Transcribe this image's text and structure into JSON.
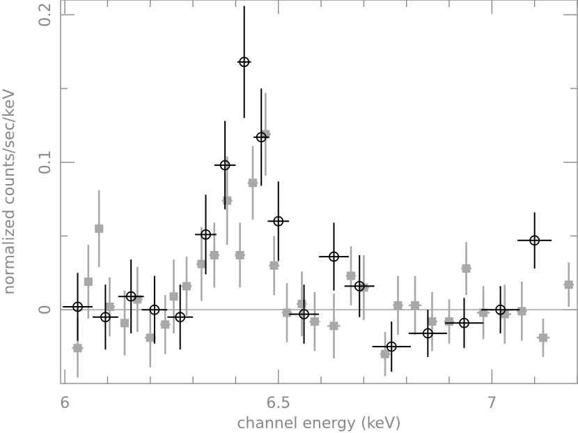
{
  "chart_data": {
    "type": "scatter",
    "title": "",
    "xlabel": "channel energy (keV)",
    "ylabel": "normalized counts/sec/keV",
    "xlim": [
      5.99,
      7.2
    ],
    "ylim": [
      -0.05,
      0.21
    ],
    "x_ticks": [
      {
        "value": 6.0,
        "label": "6"
      },
      {
        "value": 6.5,
        "label": "6.5"
      },
      {
        "value": 7.0,
        "label": "7"
      }
    ],
    "y_ticks": [
      {
        "value": 0.0,
        "label": "0"
      },
      {
        "value": 0.1,
        "label": "0.1"
      },
      {
        "value": 0.2,
        "label": "0.2"
      }
    ],
    "grid": false,
    "zero_line": true,
    "series": [
      {
        "marker": "square",
        "color": "#a8a8a8",
        "points": [
          {
            "x": 6.03,
            "y": -0.026,
            "xerr": 0.013,
            "yerr": 0.02
          },
          {
            "x": 6.055,
            "y": 0.019,
            "xerr": 0.01,
            "yerr": 0.025
          },
          {
            "x": 6.08,
            "y": 0.055,
            "xerr": 0.01,
            "yerr": 0.026
          },
          {
            "x": 6.105,
            "y": 0.002,
            "xerr": 0.012,
            "yerr": 0.02
          },
          {
            "x": 6.14,
            "y": -0.009,
            "xerr": 0.01,
            "yerr": 0.022
          },
          {
            "x": 6.17,
            "y": 0.007,
            "xerr": 0.012,
            "yerr": 0.022
          },
          {
            "x": 6.2,
            "y": -0.019,
            "xerr": 0.013,
            "yerr": 0.02
          },
          {
            "x": 6.235,
            "y": -0.01,
            "xerr": 0.012,
            "yerr": 0.02
          },
          {
            "x": 6.255,
            "y": 0.009,
            "xerr": 0.01,
            "yerr": 0.025
          },
          {
            "x": 6.285,
            "y": 0.016,
            "xerr": 0.012,
            "yerr": 0.02
          },
          {
            "x": 6.32,
            "y": 0.031,
            "xerr": 0.012,
            "yerr": 0.025
          },
          {
            "x": 6.35,
            "y": 0.037,
            "xerr": 0.012,
            "yerr": 0.022
          },
          {
            "x": 6.38,
            "y": 0.074,
            "xerr": 0.012,
            "yerr": 0.03
          },
          {
            "x": 6.41,
            "y": 0.037,
            "xerr": 0.012,
            "yerr": 0.022
          },
          {
            "x": 6.44,
            "y": 0.086,
            "xerr": 0.012,
            "yerr": 0.025
          },
          {
            "x": 6.47,
            "y": 0.119,
            "xerr": 0.012,
            "yerr": 0.028
          },
          {
            "x": 6.49,
            "y": 0.03,
            "xerr": 0.012,
            "yerr": 0.02
          },
          {
            "x": 6.52,
            "y": -0.002,
            "xerr": 0.012,
            "yerr": 0.02
          },
          {
            "x": 6.555,
            "y": 0.004,
            "xerr": 0.012,
            "yerr": 0.022
          },
          {
            "x": 6.585,
            "y": -0.008,
            "xerr": 0.012,
            "yerr": 0.02
          },
          {
            "x": 6.63,
            "y": -0.011,
            "xerr": 0.015,
            "yerr": 0.022
          },
          {
            "x": 6.67,
            "y": 0.023,
            "xerr": 0.012,
            "yerr": 0.02
          },
          {
            "x": 6.7,
            "y": 0.015,
            "xerr": 0.012,
            "yerr": 0.022
          },
          {
            "x": 6.75,
            "y": -0.03,
            "xerr": 0.012,
            "yerr": 0.015
          },
          {
            "x": 6.78,
            "y": 0.003,
            "xerr": 0.012,
            "yerr": 0.02
          },
          {
            "x": 6.82,
            "y": 0.003,
            "xerr": 0.015,
            "yerr": 0.02
          },
          {
            "x": 6.86,
            "y": -0.008,
            "xerr": 0.012,
            "yerr": 0.02
          },
          {
            "x": 6.9,
            "y": -0.008,
            "xerr": 0.012,
            "yerr": 0.015
          },
          {
            "x": 6.94,
            "y": 0.028,
            "xerr": 0.012,
            "yerr": 0.018
          },
          {
            "x": 6.98,
            "y": -0.002,
            "xerr": 0.015,
            "yerr": 0.018
          },
          {
            "x": 7.03,
            "y": -0.003,
            "xerr": 0.015,
            "yerr": 0.02
          },
          {
            "x": 7.07,
            "y": -0.001,
            "xerr": 0.012,
            "yerr": 0.02
          },
          {
            "x": 7.12,
            "y": -0.019,
            "xerr": 0.015,
            "yerr": 0.013
          },
          {
            "x": 7.18,
            "y": 0.017,
            "xerr": 0.012,
            "yerr": 0.015
          }
        ]
      },
      {
        "marker": "circle",
        "color": "#000000",
        "points": [
          {
            "x": 6.03,
            "y": 0.002,
            "xerr": 0.035,
            "yerr": 0.023
          },
          {
            "x": 6.095,
            "y": -0.005,
            "xerr": 0.03,
            "yerr": 0.022
          },
          {
            "x": 6.155,
            "y": 0.009,
            "xerr": 0.03,
            "yerr": 0.025
          },
          {
            "x": 6.21,
            "y": 0.0,
            "xerr": 0.03,
            "yerr": 0.023
          },
          {
            "x": 6.27,
            "y": -0.005,
            "xerr": 0.03,
            "yerr": 0.022
          },
          {
            "x": 6.33,
            "y": 0.051,
            "xerr": 0.025,
            "yerr": 0.027
          },
          {
            "x": 6.375,
            "y": 0.098,
            "xerr": 0.025,
            "yerr": 0.03
          },
          {
            "x": 6.42,
            "y": 0.168,
            "xerr": 0.016,
            "yerr": 0.038
          },
          {
            "x": 6.46,
            "y": 0.117,
            "xerr": 0.018,
            "yerr": 0.033
          },
          {
            "x": 6.5,
            "y": 0.06,
            "xerr": 0.025,
            "yerr": 0.027
          },
          {
            "x": 6.56,
            "y": -0.003,
            "xerr": 0.035,
            "yerr": 0.02
          },
          {
            "x": 6.63,
            "y": 0.036,
            "xerr": 0.035,
            "yerr": 0.023
          },
          {
            "x": 6.69,
            "y": 0.016,
            "xerr": 0.035,
            "yerr": 0.021
          },
          {
            "x": 6.765,
            "y": -0.025,
            "xerr": 0.045,
            "yerr": 0.017
          },
          {
            "x": 6.85,
            "y": -0.016,
            "xerr": 0.045,
            "yerr": 0.016
          },
          {
            "x": 6.935,
            "y": -0.009,
            "xerr": 0.045,
            "yerr": 0.017
          },
          {
            "x": 7.02,
            "y": 0.0,
            "xerr": 0.045,
            "yerr": 0.016
          },
          {
            "x": 7.1,
            "y": 0.047,
            "xerr": 0.04,
            "yerr": 0.019
          }
        ]
      }
    ]
  }
}
